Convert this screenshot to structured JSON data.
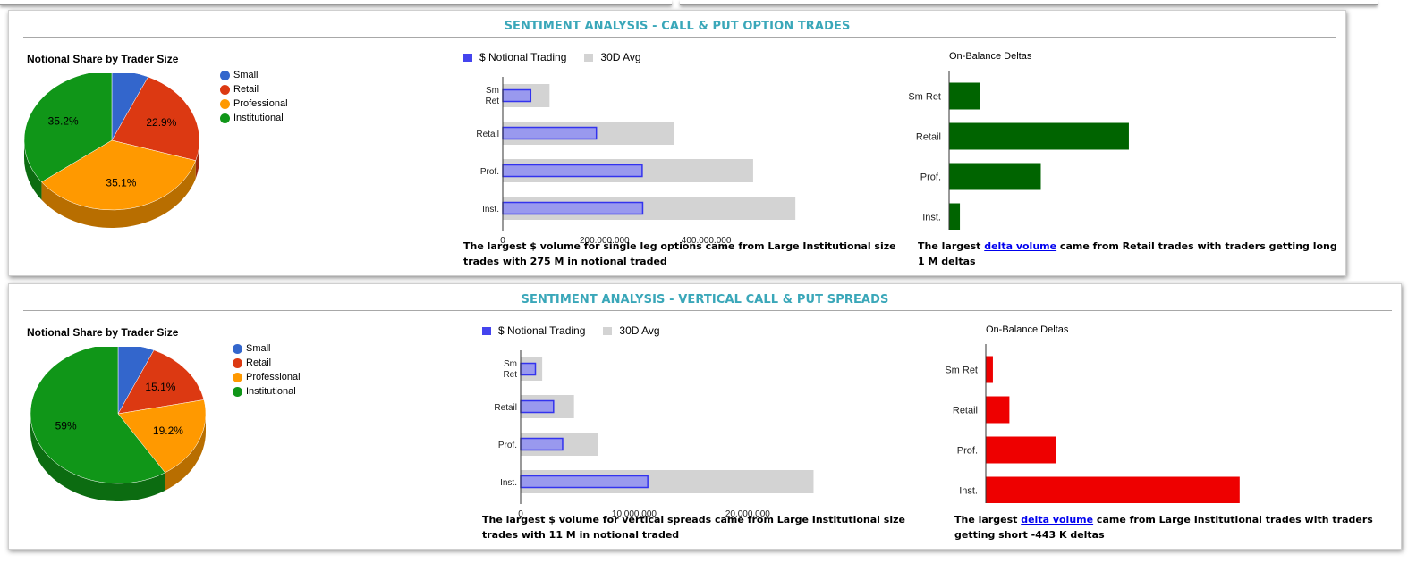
{
  "panels": [
    {
      "title": "SENTIMENT ANALYSIS - CALL & PUT OPTION TRADES",
      "pie_title": "Notional Share by Trader Size",
      "bar_legend": {
        "notional": "$ Notional Trading",
        "avg": "30D Avg"
      },
      "caption": "The largest $ volume for single leg options came from Large Institutional size trades with 275 M in notional traded",
      "delta_title": "On-Balance Deltas",
      "delta_caption_pre": "The largest ",
      "delta_caption_link": "delta volume",
      "delta_caption_post": " came from Retail trades with traders getting long 1 M deltas"
    },
    {
      "title": "SENTIMENT ANALYSIS - VERTICAL CALL & PUT SPREADS",
      "pie_title": "Notional Share by Trader Size",
      "bar_legend": {
        "notional": "$ Notional Trading",
        "avg": "30D Avg"
      },
      "caption": "The largest $ volume for vertical spreads came from Large Institutional size trades with 11 M in notional traded",
      "delta_title": "On-Balance Deltas",
      "delta_caption_pre": "The largest ",
      "delta_caption_link": "delta volume",
      "delta_caption_post": " came from Large Institutional trades with traders getting short -443 K deltas"
    }
  ],
  "colors": {
    "small": "#3366cc",
    "retail": "#dc3912",
    "professional": "#ff9900",
    "institutional": "#109618",
    "notional_fill": "#9999ee",
    "notional_border": "#3333ee",
    "avg": "#d3d3d3",
    "delta_pos": "#006400",
    "delta_neg": "#ee0000",
    "title": "#3aa7b9"
  },
  "chart_data": [
    {
      "type": "pie",
      "title": "Notional Share by Trader Size",
      "categories": [
        "Small",
        "Retail",
        "Professional",
        "Institutional"
      ],
      "values": [
        6.8,
        22.9,
        35.1,
        35.2
      ],
      "labels": [
        "",
        "22.9%",
        "35.1%",
        "35.2%"
      ]
    },
    {
      "type": "bar",
      "orientation": "horizontal",
      "categories": [
        "Sm Ret",
        "Retail",
        "Prof.",
        "Inst."
      ],
      "series": [
        {
          "name": "$ Notional Trading",
          "values": [
            55000000,
            184000000,
            274000000,
            275000000
          ]
        },
        {
          "name": "30D Avg",
          "values": [
            92000000,
            337000000,
            492000000,
            575000000
          ]
        }
      ],
      "xlim": [
        0,
        580000000
      ],
      "xticks": [
        "0",
        "200,000,000",
        "400,000,000"
      ],
      "xtick_values": [
        0,
        200000000,
        400000000
      ]
    },
    {
      "type": "bar",
      "orientation": "horizontal",
      "title": "On-Balance Deltas",
      "categories": [
        "Sm Ret",
        "Retail",
        "Prof.",
        "Inst."
      ],
      "values": [
        0.17,
        1.0,
        0.51,
        0.06
      ],
      "xlim": [
        0,
        1.05
      ]
    },
    {
      "type": "pie",
      "title": "Notional Share by Trader Size",
      "categories": [
        "Small",
        "Retail",
        "Professional",
        "Institutional"
      ],
      "values": [
        6.7,
        15.1,
        19.2,
        59.0
      ],
      "labels": [
        "",
        "15.1%",
        "19.2%",
        "59%"
      ]
    },
    {
      "type": "bar",
      "orientation": "horizontal",
      "categories": [
        "Sm Ret",
        "Retail",
        "Prof.",
        "Inst."
      ],
      "series": [
        {
          "name": "$ Notional Trading",
          "values": [
            1300000,
            2900000,
            3700000,
            11200000
          ]
        },
        {
          "name": "30D Avg",
          "values": [
            1900000,
            4700000,
            6800000,
            25800000
          ]
        }
      ],
      "xlim": [
        0,
        26000000
      ],
      "xticks": [
        "0",
        "10,000,000",
        "20,000,000"
      ],
      "xtick_values": [
        0,
        10000000,
        20000000
      ]
    },
    {
      "type": "bar",
      "orientation": "horizontal",
      "title": "On-Balance Deltas",
      "categories": [
        "Sm Ret",
        "Retail",
        "Prof.",
        "Inst."
      ],
      "values": [
        -0.028,
        -0.093,
        -0.278,
        -1.0
      ],
      "xlim": [
        0,
        1.05
      ]
    }
  ]
}
